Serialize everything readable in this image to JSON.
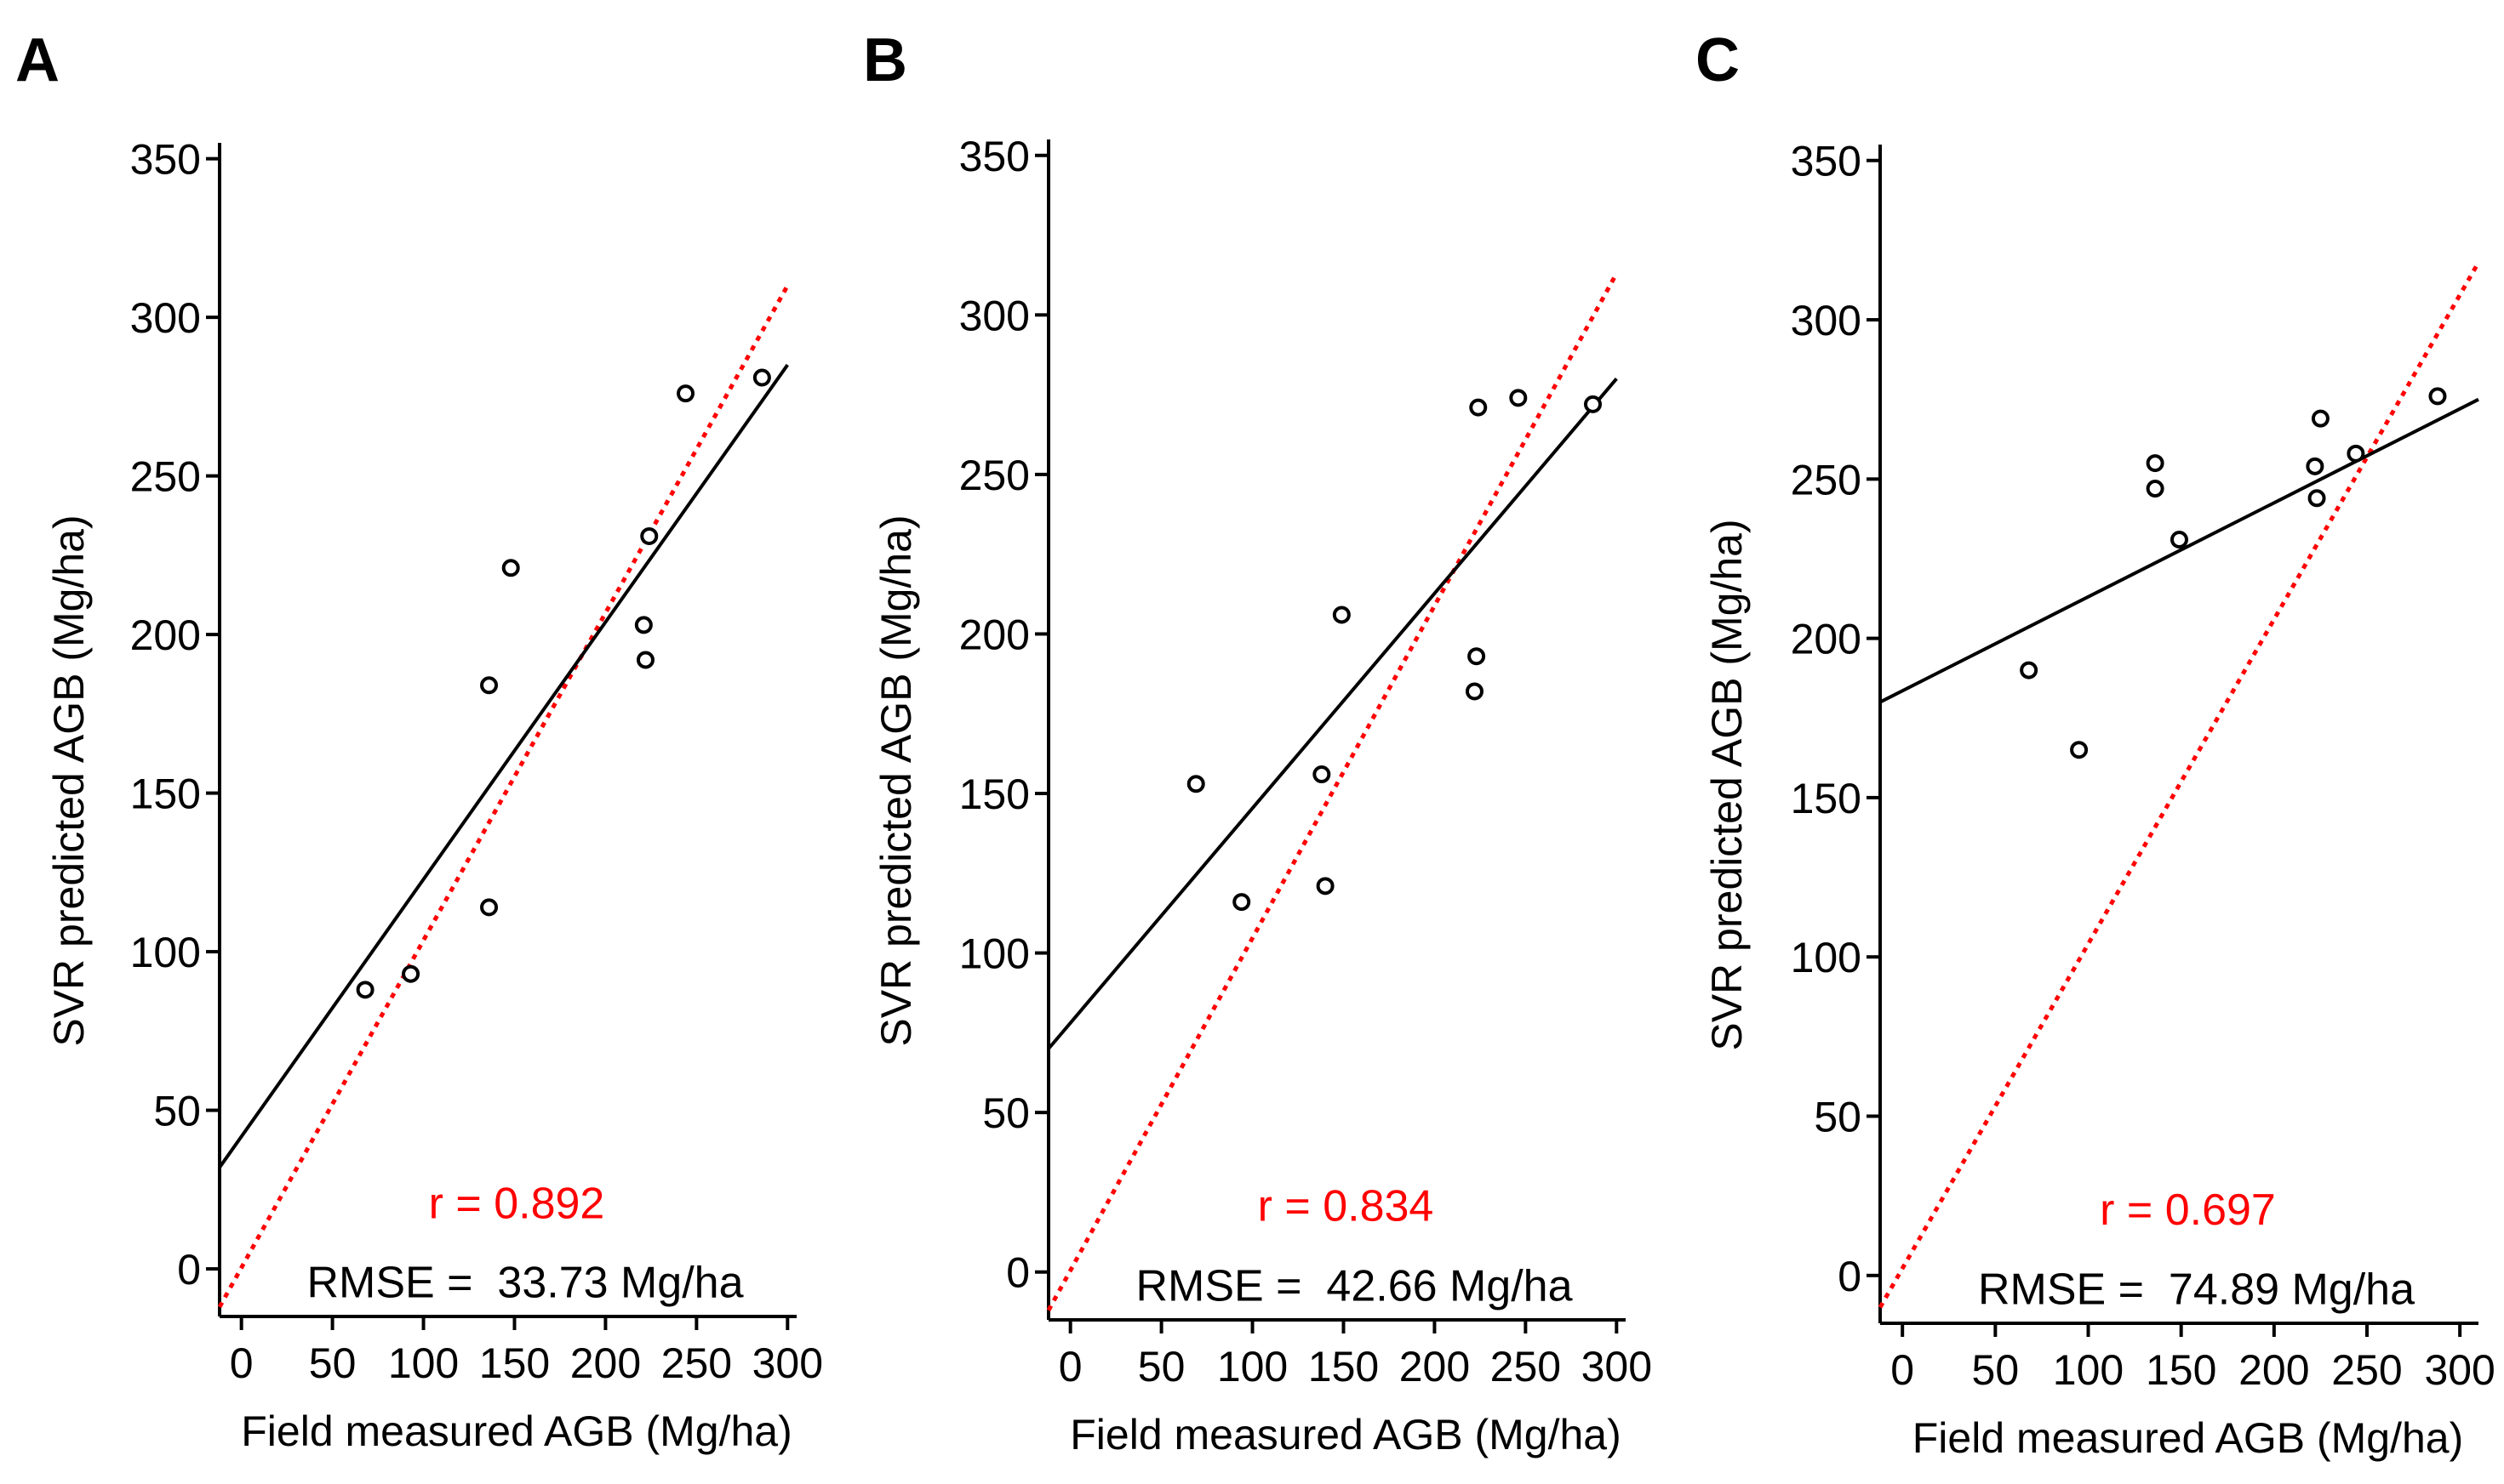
{
  "colors": {
    "reference_line": "#ff0000",
    "r_text": "#ff0000",
    "fit_line": "#000000",
    "points": "#000000"
  },
  "chart_data": [
    {
      "type": "scatter",
      "panel_label": "A",
      "xlabel": "Field measured AGB (Mg/ha)",
      "ylabel": "SVR predicted AGB (Mg/ha)",
      "xlim": [
        -12,
        305
      ],
      "ylim": [
        -15,
        355
      ],
      "xticks": [
        0,
        50,
        100,
        150,
        200,
        250,
        300
      ],
      "yticks": [
        0,
        50,
        100,
        150,
        200,
        250,
        300,
        350
      ],
      "points": [
        {
          "x": 68,
          "y": 88
        },
        {
          "x": 93,
          "y": 93
        },
        {
          "x": 136,
          "y": 114
        },
        {
          "x": 136,
          "y": 184
        },
        {
          "x": 148,
          "y": 221
        },
        {
          "x": 221,
          "y": 203
        },
        {
          "x": 222,
          "y": 192
        },
        {
          "x": 224,
          "y": 231
        },
        {
          "x": 244,
          "y": 276
        },
        {
          "x": 286,
          "y": 281
        }
      ],
      "fit_line": {
        "x": [
          -12,
          300
        ],
        "y": [
          32,
          285
        ]
      },
      "reference_line": {
        "x": [
          -12,
          300
        ],
        "y": [
          -12,
          310
        ]
      },
      "r_label": "r = 0.892",
      "rmse_label": "RMSE =  33.73 Mg/ha"
    },
    {
      "type": "scatter",
      "panel_label": "B",
      "xlabel": "Field measured AGB (Mg/ha)",
      "ylabel": "SVR predicted AGB (Mg/ha)",
      "xlim": [
        -12,
        305
      ],
      "ylim": [
        -15,
        355
      ],
      "xticks": [
        0,
        50,
        100,
        150,
        200,
        250,
        300
      ],
      "yticks": [
        0,
        50,
        100,
        150,
        200,
        250,
        300,
        350
      ],
      "points": [
        {
          "x": 69,
          "y": 153
        },
        {
          "x": 94,
          "y": 116
        },
        {
          "x": 138,
          "y": 156
        },
        {
          "x": 140,
          "y": 121
        },
        {
          "x": 149,
          "y": 206
        },
        {
          "x": 222,
          "y": 182
        },
        {
          "x": 223,
          "y": 193
        },
        {
          "x": 224,
          "y": 271
        },
        {
          "x": 246,
          "y": 274
        },
        {
          "x": 287,
          "y": 272
        }
      ],
      "fit_line": {
        "x": [
          -12,
          300
        ],
        "y": [
          70,
          280
        ]
      },
      "reference_line": {
        "x": [
          -12,
          300
        ],
        "y": [
          -12,
          313
        ]
      },
      "r_label": "r = 0.834",
      "rmse_label": "RMSE =  42.66 Mg/ha"
    },
    {
      "type": "scatter",
      "panel_label": "C",
      "xlabel": "Field measured AGB (Mg/ha)",
      "ylabel": "SVR predicted AGB (Mg/ha)",
      "xlim": [
        -12,
        310
      ],
      "ylim": [
        -15,
        355
      ],
      "xticks": [
        0,
        50,
        100,
        150,
        200,
        250,
        300
      ],
      "yticks": [
        0,
        50,
        100,
        150,
        200,
        250,
        300,
        350
      ],
      "points": [
        {
          "x": 68,
          "y": 190
        },
        {
          "x": 95,
          "y": 165
        },
        {
          "x": 136,
          "y": 247
        },
        {
          "x": 136,
          "y": 255
        },
        {
          "x": 149,
          "y": 231
        },
        {
          "x": 222,
          "y": 254
        },
        {
          "x": 223,
          "y": 244
        },
        {
          "x": 225,
          "y": 269
        },
        {
          "x": 244,
          "y": 258
        },
        {
          "x": 288,
          "y": 276
        }
      ],
      "fit_line": {
        "x": [
          -12,
          310
        ],
        "y": [
          180,
          275
        ]
      },
      "reference_line": {
        "x": [
          -12,
          310
        ],
        "y": [
          -10,
          318
        ]
      },
      "r_label": "r = 0.697",
      "rmse_label": "RMSE =  74.89 Mg/ha"
    }
  ]
}
